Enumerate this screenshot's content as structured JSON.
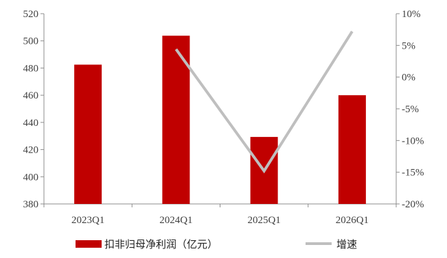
{
  "chart_data": {
    "type": "bar+line",
    "categories": [
      "2023Q1",
      "2024Q1",
      "2025Q1",
      "2026Q1"
    ],
    "series": [
      {
        "name": "扣非归母净利润（亿元）",
        "type": "bar",
        "axis": "left",
        "color": "#c00000",
        "values": [
          482.5,
          503.8,
          429.3,
          460.0
        ]
      },
      {
        "name": "增速",
        "type": "line",
        "axis": "right",
        "color": "#bfbfbf",
        "values": [
          null,
          4.4,
          -14.8,
          7.2
        ]
      }
    ],
    "y_left": {
      "min": 380,
      "max": 520,
      "step": 20,
      "tick_labels": [
        "380",
        "400",
        "420",
        "440",
        "460",
        "480",
        "500",
        "520"
      ]
    },
    "y_right": {
      "min": -20,
      "max": 10,
      "step": 5,
      "tick_labels": [
        "-20%",
        "-15%",
        "-10%",
        "-5%",
        "0%",
        "5%",
        "10%"
      ]
    },
    "title": "",
    "grid": false,
    "legend_position": "bottom"
  }
}
